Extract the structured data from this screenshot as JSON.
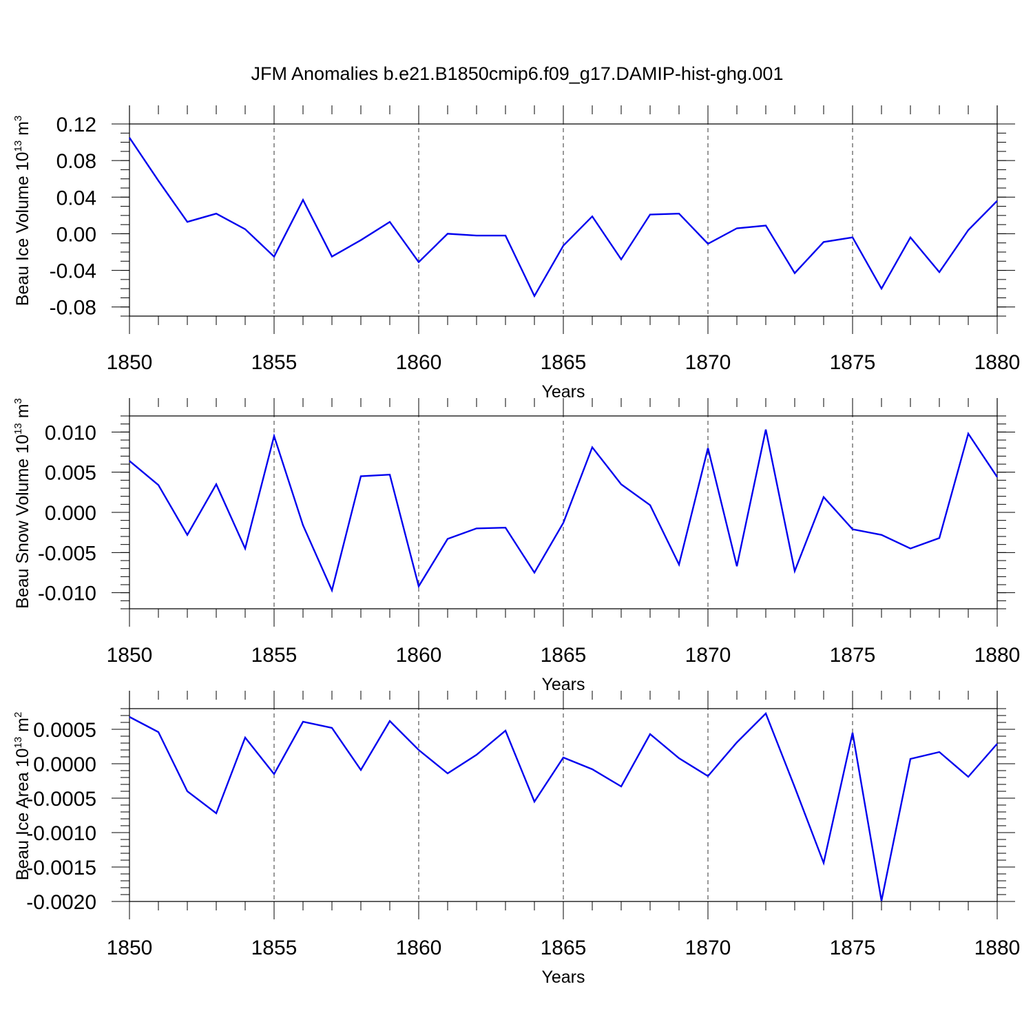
{
  "title": "JFM Anomalies b.e21.B1850cmip6.f09_g17.DAMIP-hist-ghg.001",
  "colors": {
    "series": "#0000ee",
    "axis": "#000000"
  },
  "chart_data": [
    {
      "type": "line",
      "ylabel": "Beau Ice Volume 10",
      "ylabel_exp": "13",
      "ylabel_unit": " m",
      "ylabel_unit_exp": "3",
      "xlabel": "Years",
      "xlim": [
        1850,
        1880
      ],
      "ylim": [
        -0.09,
        0.12
      ],
      "x_ticks": [
        1850,
        1855,
        1860,
        1865,
        1870,
        1875,
        1880
      ],
      "x_tick_labels": [
        "1850",
        "1855",
        "1860",
        "1865",
        "1870",
        "1875",
        "1880"
      ],
      "y_ticks": [
        0.12,
        0.08,
        0.04,
        0.0,
        -0.04,
        -0.08
      ],
      "y_tick_labels": [
        "0.12",
        "0.08",
        "0.04",
        "0.00",
        "-0.04",
        "-0.08"
      ],
      "y_minor_step": 0.01,
      "x": [
        1850,
        1851,
        1852,
        1853,
        1854,
        1855,
        1856,
        1857,
        1858,
        1859,
        1860,
        1861,
        1862,
        1863,
        1864,
        1865,
        1866,
        1867,
        1868,
        1869,
        1870,
        1871,
        1872,
        1873,
        1874,
        1875,
        1876,
        1877,
        1878,
        1879,
        1880
      ],
      "series": [
        {
          "name": "Beau Ice Volume",
          "values": [
            0.105,
            0.058,
            0.013,
            0.022,
            0.005,
            -0.025,
            0.037,
            -0.025,
            -0.007,
            0.013,
            -0.031,
            0.0,
            -0.002,
            -0.002,
            -0.068,
            -0.013,
            0.019,
            -0.028,
            0.021,
            0.022,
            -0.011,
            0.006,
            0.009,
            -0.043,
            -0.009,
            -0.004,
            -0.06,
            -0.004,
            -0.042,
            0.004,
            0.036
          ]
        }
      ]
    },
    {
      "type": "line",
      "ylabel": "Beau Snow Volume 10",
      "ylabel_exp": "13",
      "ylabel_unit": " m",
      "ylabel_unit_exp": "3",
      "xlabel": "Years",
      "xlim": [
        1850,
        1880
      ],
      "ylim": [
        -0.012,
        0.012
      ],
      "x_ticks": [
        1850,
        1855,
        1860,
        1865,
        1870,
        1875,
        1880
      ],
      "x_tick_labels": [
        "1850",
        "1855",
        "1860",
        "1865",
        "1870",
        "1875",
        "1880"
      ],
      "y_ticks": [
        0.01,
        0.005,
        0.0,
        -0.005,
        -0.01
      ],
      "y_tick_labels": [
        "0.010",
        "0.005",
        "0.000",
        "-0.005",
        "-0.010"
      ],
      "y_minor_step": 0.001,
      "x": [
        1850,
        1851,
        1852,
        1853,
        1854,
        1855,
        1856,
        1857,
        1858,
        1859,
        1860,
        1861,
        1862,
        1863,
        1864,
        1865,
        1866,
        1867,
        1868,
        1869,
        1870,
        1871,
        1872,
        1873,
        1874,
        1875,
        1876,
        1877,
        1878,
        1879,
        1880
      ],
      "series": [
        {
          "name": "Beau Snow Volume",
          "values": [
            0.0064,
            0.0034,
            -0.0028,
            0.0035,
            -0.0045,
            0.0095,
            -0.0016,
            -0.0097,
            0.0045,
            0.0047,
            -0.0092,
            -0.0033,
            -0.002,
            -0.0019,
            -0.0075,
            -0.0013,
            0.0081,
            0.0035,
            0.0009,
            -0.0065,
            0.008,
            -0.0067,
            0.0103,
            -0.0073,
            0.0019,
            -0.0021,
            -0.0028,
            -0.0045,
            -0.0032,
            0.0098,
            0.0044
          ]
        }
      ]
    },
    {
      "type": "line",
      "ylabel": "Beau Ice Area 10",
      "ylabel_exp": "13",
      "ylabel_unit": " m",
      "ylabel_unit_exp": "2",
      "xlabel": "Years",
      "xlim": [
        1850,
        1880
      ],
      "ylim": [
        -0.002,
        0.0008
      ],
      "x_ticks": [
        1850,
        1855,
        1860,
        1865,
        1870,
        1875,
        1880
      ],
      "x_tick_labels": [
        "1850",
        "1855",
        "1860",
        "1865",
        "1870",
        "1875",
        "1880"
      ],
      "y_ticks": [
        0.0005,
        0.0,
        -0.0005,
        -0.001,
        -0.0015,
        -0.002
      ],
      "y_tick_labels": [
        "0.0005",
        "0.0000",
        "-0.0005",
        "-0.0010",
        "-0.0015",
        "-0.0020"
      ],
      "y_minor_step": 0.0001,
      "x": [
        1850,
        1851,
        1852,
        1853,
        1854,
        1855,
        1856,
        1857,
        1858,
        1859,
        1860,
        1861,
        1862,
        1863,
        1864,
        1865,
        1866,
        1867,
        1868,
        1869,
        1870,
        1871,
        1872,
        1873,
        1874,
        1875,
        1876,
        1877,
        1878,
        1879,
        1880
      ],
      "series": [
        {
          "name": "Beau Ice Area",
          "values": [
            0.00068,
            0.00046,
            -0.0004,
            -0.00072,
            0.00038,
            -0.00015,
            0.00061,
            0.00052,
            -9e-05,
            0.00062,
            0.0002,
            -0.00014,
            0.00013,
            0.00048,
            -0.00055,
            9e-05,
            -8e-05,
            -0.00033,
            0.00043,
            8e-05,
            -0.00018,
            0.00031,
            0.00073,
            -0.00034,
            -0.00144,
            0.00045,
            -0.00199,
            7e-05,
            0.00017,
            -0.00019,
            0.00029
          ]
        }
      ]
    }
  ]
}
